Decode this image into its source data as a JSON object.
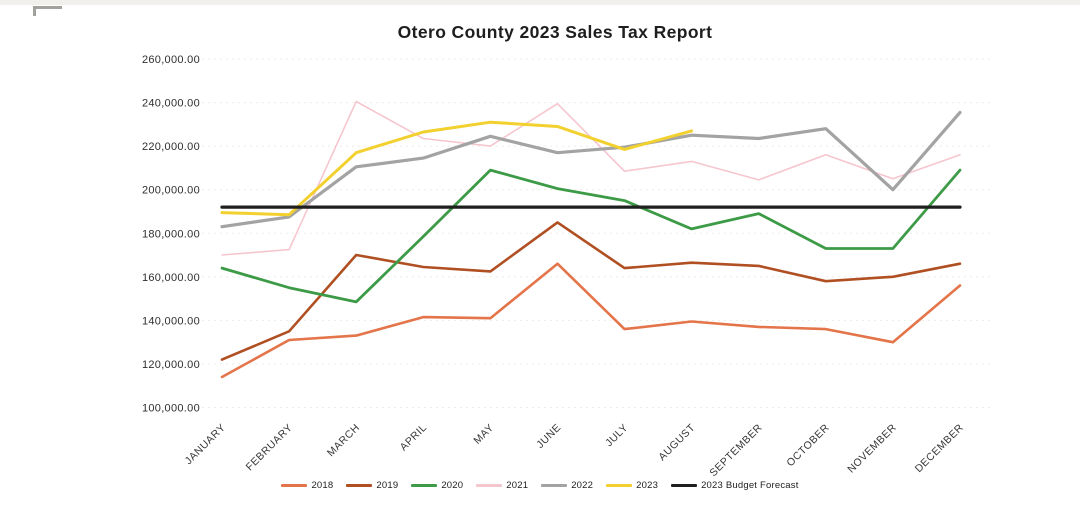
{
  "chart_data": {
    "type": "line",
    "title": "Otero County 2023 Sales Tax Report",
    "categories": [
      "JANUARY",
      "FEBRUARY",
      "MARCH",
      "APRIL",
      "MAY",
      "JUNE",
      "JULY",
      "AUGUST",
      "SEPTEMBER",
      "OCTOBER",
      "NOVEMBER",
      "DECEMBER"
    ],
    "xlabel": "",
    "ylabel": "",
    "ylim": [
      100000,
      260000
    ],
    "y_tick_step": 20000,
    "y_tick_labels": [
      "260,000.00",
      "240,000.00",
      "220,000.00",
      "200,000.00",
      "180,000.00",
      "160,000.00",
      "140,000.00",
      "120,000.00",
      "100,000.00"
    ],
    "grid": "faint horizontal",
    "legend_position": "bottom",
    "series": [
      {
        "name": "2018",
        "color": "#E4744A",
        "values": [
          114000,
          131000,
          133000,
          141500,
          141000,
          166000,
          136000,
          139500,
          137000,
          136000,
          130000,
          156000
        ]
      },
      {
        "name": "2019",
        "color": "#B04F22",
        "values": [
          122000,
          135000,
          170000,
          164500,
          162500,
          185000,
          164000,
          166500,
          165000,
          158000,
          160000,
          166000
        ]
      },
      {
        "name": "2020",
        "color": "#3D9B47",
        "values": [
          164000,
          155000,
          148500,
          178500,
          209000,
          200500,
          195000,
          182000,
          189000,
          173000,
          173000,
          209000
        ]
      },
      {
        "name": "2021",
        "color": "#F6C6CF",
        "values": [
          170000,
          172500,
          240500,
          223500,
          220000,
          239500,
          208500,
          213000,
          204500,
          216000,
          205000,
          216000
        ]
      },
      {
        "name": "2022",
        "color": "#A3A3A3",
        "values": [
          183000,
          187500,
          210500,
          214500,
          224500,
          217000,
          219500,
          225000,
          223500,
          228000,
          200000,
          235500
        ]
      },
      {
        "name": "2023",
        "color": "#F2D02E",
        "values": [
          189500,
          188500,
          217000,
          226500,
          231000,
          229000,
          218500,
          227000
        ]
      },
      {
        "name": "2023 Budget Forecast",
        "color": "#1F1F1F",
        "values": [
          192000,
          192000,
          192000,
          192000,
          192000,
          192000,
          192000,
          192000,
          192000,
          192000,
          192000,
          192000
        ]
      }
    ]
  }
}
